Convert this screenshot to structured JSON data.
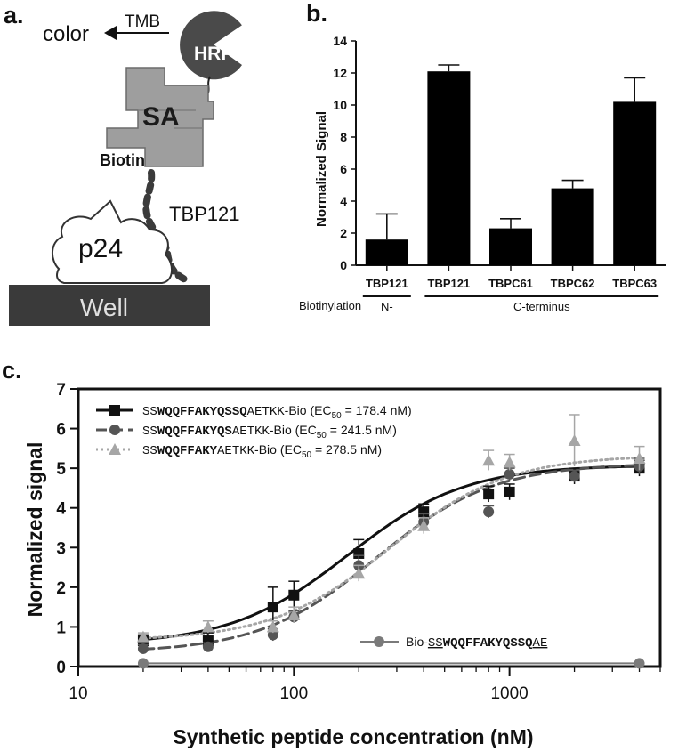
{
  "panel_labels": {
    "a": "a.",
    "b": "b.",
    "c": "c."
  },
  "schematic": {
    "color_label": "color",
    "tmb_label": "TMB",
    "hrp_label": "HRP",
    "sa_label": "SA",
    "biotin_label": "Biotin",
    "peptide_label": "TBP121",
    "p24_label": "p24",
    "well_label": "Well"
  },
  "colors": {
    "bar": "#000000",
    "series_solid": "#111111",
    "series_dashed": "#555555",
    "series_dotted": "#a6a6a6",
    "control": "#7a7a7a",
    "sa_gray": "#9e9e9e",
    "hrp_gray": "#4a4a4a",
    "well": "#3a3a3a"
  },
  "chart_data": [
    {
      "type": "bar",
      "panel": "b",
      "ylabel": "Normalized Signal",
      "ylim": [
        0,
        14
      ],
      "yticks": [
        "0",
        "2",
        "4",
        "6",
        "8",
        "10",
        "12",
        "14"
      ],
      "categories": [
        "TBP121",
        "TBP121",
        "TBPC61",
        "TBPC62",
        "TBPC63"
      ],
      "values": [
        1.6,
        12.1,
        2.3,
        4.8,
        10.2
      ],
      "errors": [
        1.6,
        0.4,
        0.6,
        0.5,
        1.5
      ],
      "biotinylation_label": "Biotinylation",
      "groups": [
        {
          "label": "N-",
          "categories": [
            0
          ]
        },
        {
          "label": "C-terminus",
          "categories": [
            1,
            2,
            3,
            4
          ]
        }
      ]
    },
    {
      "type": "line",
      "panel": "c",
      "xlabel": "Synthetic peptide concentration (nM)",
      "ylabel": "Normalized signal",
      "xscale": "log",
      "xlim": [
        10,
        5000
      ],
      "ylim": [
        0,
        7
      ],
      "xticks": [
        "10",
        "100",
        "1000"
      ],
      "yticks": [
        "0",
        "1",
        "2",
        "3",
        "4",
        "5",
        "6",
        "7"
      ],
      "x": [
        20,
        40,
        80,
        100,
        200,
        400,
        800,
        1000,
        2000,
        4000
      ],
      "legend_position": "top-left",
      "series": [
        {
          "name": "SSWQQFFAKYQSSQAETKK-Bio (EC50 = 178.4 nM)",
          "legend_parts": [
            "SS",
            "WQQFFAKYQSSQ",
            "AETKK",
            "-Bio (EC",
            "50",
            " = 178.4 nM)"
          ],
          "marker": "square",
          "line": "solid",
          "ec50": 178.4,
          "y": [
            0.65,
            0.65,
            1.5,
            1.8,
            2.85,
            3.9,
            4.35,
            4.4,
            4.8,
            5.0
          ],
          "err": [
            0.15,
            0.2,
            0.5,
            0.35,
            0.35,
            0.2,
            0.2,
            0.2,
            0.2,
            0.2
          ]
        },
        {
          "name": "SSWQQFFAKYQSAETKK-Bio (EC50 = 241.5 nM)",
          "legend_parts": [
            "SS",
            "WQQFFAKYQS",
            "AETKK",
            "-Bio (EC",
            "50",
            " = 241.5 nM)"
          ],
          "marker": "circle",
          "line": "dashed",
          "ec50": 241.5,
          "y": [
            0.45,
            0.5,
            0.8,
            1.25,
            2.55,
            3.65,
            3.9,
            4.85,
            4.8,
            5.05
          ],
          "err": [
            0.1,
            0.1,
            0.15,
            0.15,
            0.25,
            0.2,
            0.15,
            0.15,
            0.15,
            0.2
          ]
        },
        {
          "name": "SSWQQFFAKYAETKK-Bio (EC50 = 278.5 nM)",
          "legend_parts": [
            "SS",
            "WQQFFAKY",
            "AETKK",
            "-Bio (EC",
            "50",
            " = 278.5 nM)"
          ],
          "marker": "triangle",
          "line": "dotted",
          "ec50": 278.5,
          "y": [
            0.75,
            1.0,
            1.0,
            1.3,
            2.35,
            3.55,
            5.2,
            5.15,
            5.7,
            5.25
          ],
          "err": [
            0.1,
            0.15,
            0.15,
            0.2,
            0.2,
            0.2,
            0.25,
            0.2,
            0.65,
            0.3
          ]
        }
      ],
      "control": {
        "name": "Bio-SSWQQFFAKYQSSQAE",
        "legend_parts": [
          "Bio-",
          "SS",
          "WQQFFAKYQSSQ",
          "AE"
        ],
        "marker": "circle",
        "x": [
          20,
          4000
        ],
        "y": [
          0.08,
          0.08
        ]
      }
    }
  ]
}
